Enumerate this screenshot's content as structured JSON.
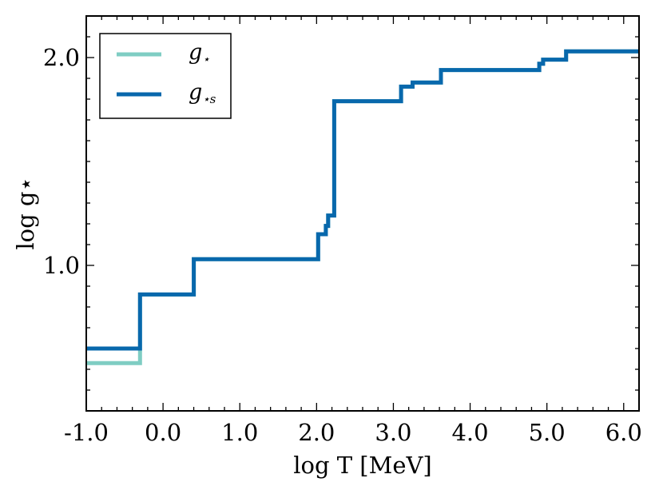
{
  "chart_data": {
    "type": "line",
    "title": "",
    "xlabel": "log T [MeV]",
    "ylabel": "log g⋆",
    "xlim": [
      -1.0,
      6.2
    ],
    "ylim": [
      0.3,
      2.2
    ],
    "x_ticks": [
      -1.0,
      0.0,
      1.0,
      2.0,
      3.0,
      4.0,
      5.0,
      6.0
    ],
    "x_tick_labels": [
      "-1.0",
      "0.0",
      "1.0",
      "2.0",
      "3.0",
      "4.0",
      "5.0",
      "6.0"
    ],
    "y_ticks": [
      1.0,
      2.0
    ],
    "y_tick_labels": [
      "1.0",
      "2.0"
    ],
    "legend_position": "top-left",
    "series": [
      {
        "name": "g⋆",
        "legend_main": "g",
        "legend_sub": "⋆",
        "color": "#7fcdc3",
        "x": [
          -1.0,
          -0.3,
          -0.3,
          0.4,
          0.4,
          2.02,
          2.02,
          2.12,
          2.12,
          2.15,
          2.15,
          2.23,
          2.23,
          3.1,
          3.1,
          3.25,
          3.25,
          3.62,
          3.62,
          4.9,
          4.9,
          4.95,
          4.95,
          5.25,
          5.25,
          6.2
        ],
        "y": [
          0.53,
          0.53,
          0.86,
          0.86,
          1.03,
          1.03,
          1.15,
          1.15,
          1.19,
          1.19,
          1.24,
          1.24,
          1.79,
          1.79,
          1.86,
          1.86,
          1.88,
          1.88,
          1.94,
          1.94,
          1.97,
          1.97,
          1.99,
          1.99,
          2.03,
          2.03
        ]
      },
      {
        "name": "g⋆s",
        "legend_main": "g",
        "legend_sub": "⋆s",
        "color": "#0868ac",
        "x": [
          -1.0,
          -0.3,
          -0.3,
          0.4,
          0.4,
          2.02,
          2.02,
          2.12,
          2.12,
          2.15,
          2.15,
          2.23,
          2.23,
          3.1,
          3.1,
          3.25,
          3.25,
          3.62,
          3.62,
          4.9,
          4.9,
          4.95,
          4.95,
          5.25,
          5.25,
          6.2
        ],
        "y": [
          0.6,
          0.6,
          0.86,
          0.86,
          1.03,
          1.03,
          1.15,
          1.15,
          1.19,
          1.19,
          1.24,
          1.24,
          1.79,
          1.79,
          1.86,
          1.86,
          1.88,
          1.88,
          1.94,
          1.94,
          1.97,
          1.97,
          1.99,
          1.99,
          2.03,
          2.03
        ]
      }
    ]
  }
}
